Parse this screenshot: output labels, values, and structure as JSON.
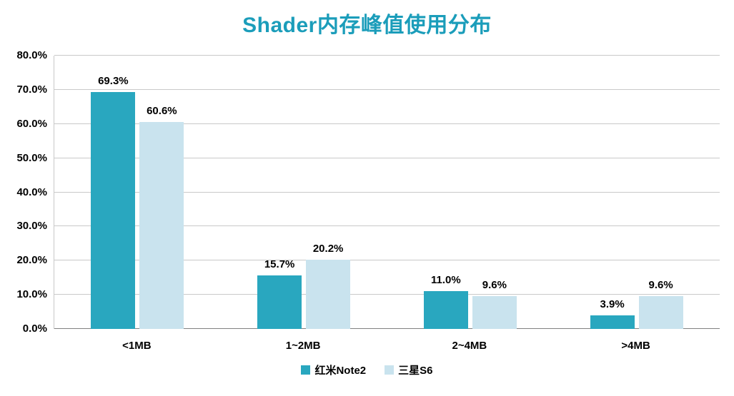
{
  "chart_data": {
    "type": "bar",
    "title": "Shader内存峰值使用分布",
    "categories": [
      "<1MB",
      "1~2MB",
      "2~4MB",
      ">4MB"
    ],
    "series": [
      {
        "name": "红米Note2",
        "color": "#29A7BF",
        "values": [
          69.3,
          15.7,
          11.0,
          3.9
        ]
      },
      {
        "name": "三星S6",
        "color": "#C9E3EE",
        "values": [
          60.6,
          20.2,
          9.6,
          9.6
        ]
      }
    ],
    "data_labels": {
      "红米Note2": [
        "69.3%",
        "15.7%",
        "11.0%",
        "3.9%"
      ],
      "三星S6": [
        "60.6%",
        "20.2%",
        "9.6%",
        "9.6%"
      ]
    },
    "ylim": [
      0,
      80
    ],
    "ytick_step": 10,
    "ytick_labels": [
      "0.0%",
      "10.0%",
      "20.0%",
      "30.0%",
      "40.0%",
      "50.0%",
      "60.0%",
      "70.0%",
      "80.0%"
    ],
    "grid": true,
    "legend_position": "bottom",
    "value_label_format": "one_decimal_percent"
  },
  "colors": {
    "title": "#1B9DBA",
    "grid": "#C9C9C9",
    "axis": "#808080",
    "text": "#000000"
  }
}
